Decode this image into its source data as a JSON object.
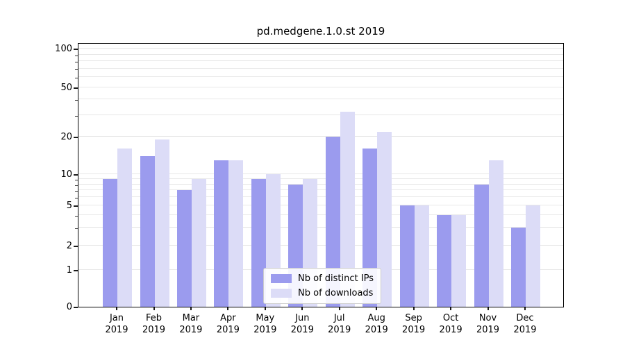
{
  "chart_data": {
    "type": "bar",
    "title": "pd.medgene.1.0.st 2019",
    "categories": [
      "Jan 2019",
      "Feb 2019",
      "Mar 2019",
      "Apr 2019",
      "May 2019",
      "Jun 2019",
      "Jul 2019",
      "Aug 2019",
      "Sep 2019",
      "Oct 2019",
      "Nov 2019",
      "Dec 2019"
    ],
    "series": [
      {
        "name": "Nb of distinct IPs",
        "color": "#9b9bee",
        "values": [
          9,
          14,
          7,
          13,
          9,
          8,
          20,
          16,
          5,
          4,
          8,
          3
        ]
      },
      {
        "name": "Nb of downloads",
        "color": "#dcdcf7",
        "values": [
          16,
          19,
          9,
          13,
          10,
          9,
          32,
          22,
          5,
          4,
          13,
          5
        ]
      }
    ],
    "yscale": "symlog",
    "yticks": [
      100,
      50,
      20,
      10,
      5,
      2,
      1,
      0
    ],
    "ylim": [
      0,
      110
    ],
    "grid": "horizontal",
    "gridline_color": "#e7e7e7",
    "legend_position": "lower center",
    "xlabel": "",
    "ylabel": ""
  }
}
